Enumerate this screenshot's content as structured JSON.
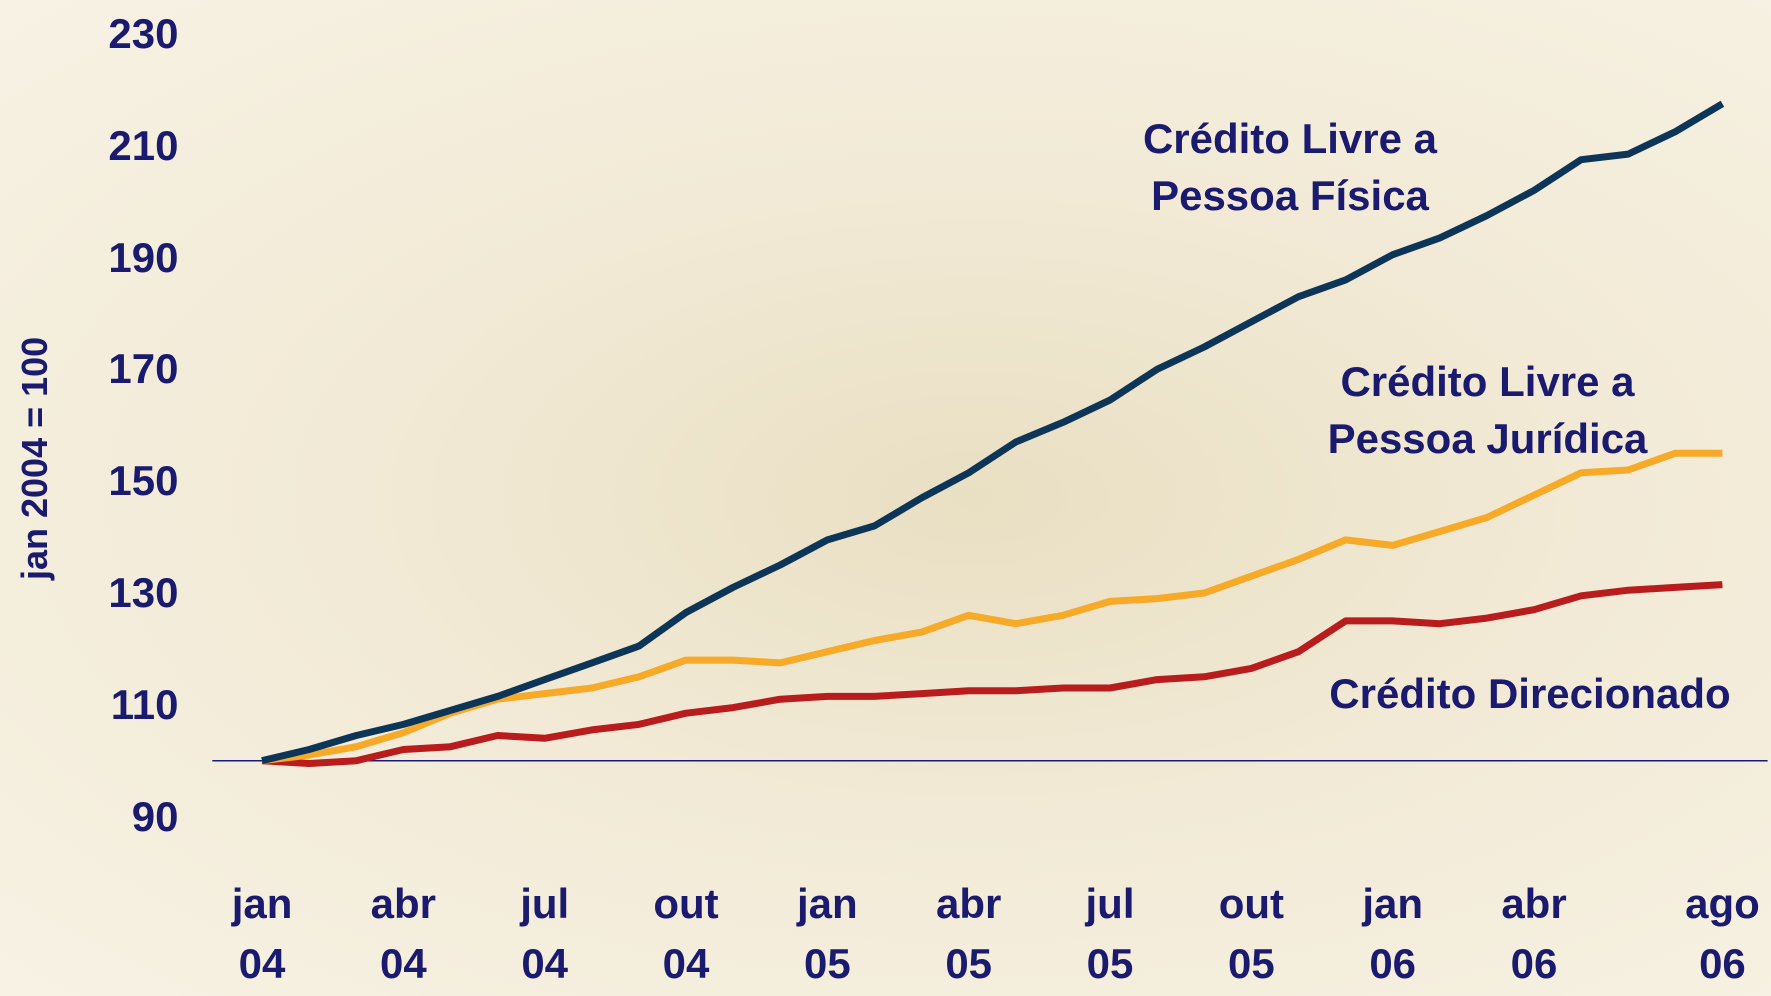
{
  "chart_data": {
    "type": "line",
    "y_label": "jan 2004 = 100",
    "categories": [
      "jan 04",
      null,
      null,
      "abr 04",
      null,
      null,
      "jul 04",
      null,
      null,
      "out 04",
      null,
      null,
      "jan 05",
      null,
      null,
      "abr 05",
      null,
      null,
      "jul 05",
      null,
      null,
      "out 05",
      null,
      null,
      "jan 06",
      null,
      null,
      "abr 06",
      null,
      null,
      null,
      "ago 06"
    ],
    "series": [
      {
        "name": "Crédito Livre a Pessoa Física",
        "color": "#0d3557",
        "values": [
          100,
          102,
          104.5,
          106.5,
          109,
          111.5,
          114.5,
          117.5,
          120.5,
          126.5,
          131,
          135,
          139.5,
          142,
          147,
          151.5,
          157,
          160.5,
          164.5,
          170,
          174,
          178.5,
          183,
          186,
          190.5,
          193.5,
          197.5,
          202,
          207.5,
          208.5,
          212.5,
          217.5
        ]
      },
      {
        "name": "Crédito Livre a Pessoa Jurídica",
        "color": "#f7a928",
        "values": [
          100,
          101,
          102.5,
          105,
          108.5,
          111,
          112,
          113,
          115,
          118,
          118,
          117.5,
          119.5,
          121.5,
          123,
          126,
          124.5,
          126,
          128.5,
          129,
          130,
          133,
          136,
          139.5,
          138.5,
          141,
          143.5,
          147.5,
          151.5,
          152,
          155,
          155
        ]
      },
      {
        "name": "Crédito Direcionado",
        "color": "#b81c1c",
        "values": [
          100,
          99.5,
          100,
          102,
          102.5,
          104.5,
          104,
          105.5,
          106.5,
          108.5,
          109.5,
          111,
          111.5,
          111.5,
          112,
          112.5,
          112.5,
          113,
          113,
          114.5,
          115,
          116.5,
          119.5,
          125,
          125,
          124.5,
          125.5,
          127,
          129.5,
          130.5,
          131,
          131.5
        ]
      }
    ],
    "ylim": [
      90,
      230
    ],
    "yticks": [
      90,
      110,
      130,
      150,
      170,
      190,
      210,
      230
    ],
    "reference_line": 100,
    "reference_color": "#1a1a7a"
  }
}
